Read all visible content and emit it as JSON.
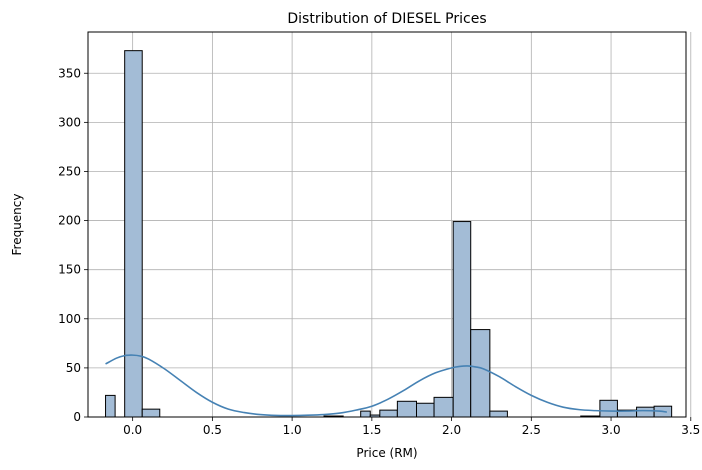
{
  "chart_data": {
    "type": "bar",
    "subtype": "histogram-with-kde",
    "title": "Distribution of DIESEL Prices",
    "xlabel": "Price (RM)",
    "ylabel": "Frequency",
    "xlim": [
      -0.28,
      3.47
    ],
    "ylim": [
      0,
      392
    ],
    "xticks": [
      "0.0",
      "0.5",
      "1.0",
      "1.5",
      "2.0",
      "2.5",
      "3.0",
      "3.5"
    ],
    "xtick_values": [
      0,
      0.5,
      1.0,
      1.5,
      2.0,
      2.5,
      3.0,
      3.5
    ],
    "yticks": [
      "0",
      "50",
      "100",
      "150",
      "200",
      "250",
      "300",
      "350"
    ],
    "ytick_values": [
      0,
      50,
      100,
      150,
      200,
      250,
      300,
      350
    ],
    "grid": true,
    "bar_color": "#a3bcd6",
    "bar_edge_color": "#000000",
    "kde_color": "#4682b4",
    "bins": [
      {
        "start": -0.17,
        "end": -0.11,
        "count": 22
      },
      {
        "start": -0.11,
        "end": -0.05,
        "count": 0
      },
      {
        "start": -0.05,
        "end": 0.06,
        "count": 373
      },
      {
        "start": 0.06,
        "end": 0.17,
        "count": 8
      },
      {
        "start": 0.17,
        "end": 0.28,
        "count": 0
      },
      {
        "start": 0.28,
        "end": 0.4,
        "count": 0
      },
      {
        "start": 0.4,
        "end": 0.51,
        "count": 0
      },
      {
        "start": 0.51,
        "end": 0.63,
        "count": 0
      },
      {
        "start": 0.63,
        "end": 0.74,
        "count": 0
      },
      {
        "start": 0.74,
        "end": 0.86,
        "count": 0
      },
      {
        "start": 0.86,
        "end": 0.97,
        "count": 0
      },
      {
        "start": 0.97,
        "end": 1.09,
        "count": 0
      },
      {
        "start": 1.09,
        "end": 1.2,
        "count": 0
      },
      {
        "start": 1.2,
        "end": 1.32,
        "count": 1
      },
      {
        "start": 1.32,
        "end": 1.43,
        "count": 0
      },
      {
        "start": 1.43,
        "end": 1.49,
        "count": 6
      },
      {
        "start": 1.49,
        "end": 1.55,
        "count": 2
      },
      {
        "start": 1.55,
        "end": 1.66,
        "count": 7
      },
      {
        "start": 1.66,
        "end": 1.78,
        "count": 16
      },
      {
        "start": 1.78,
        "end": 1.89,
        "count": 14
      },
      {
        "start": 1.89,
        "end": 2.01,
        "count": 20
      },
      {
        "start": 2.01,
        "end": 2.12,
        "count": 199
      },
      {
        "start": 2.12,
        "end": 2.24,
        "count": 89
      },
      {
        "start": 2.24,
        "end": 2.35,
        "count": 6
      },
      {
        "start": 2.35,
        "end": 2.47,
        "count": 0
      },
      {
        "start": 2.47,
        "end": 2.58,
        "count": 0
      },
      {
        "start": 2.58,
        "end": 2.7,
        "count": 0
      },
      {
        "start": 2.7,
        "end": 2.81,
        "count": 0
      },
      {
        "start": 2.81,
        "end": 2.93,
        "count": 1
      },
      {
        "start": 2.93,
        "end": 3.04,
        "count": 17
      },
      {
        "start": 3.04,
        "end": 3.16,
        "count": 7
      },
      {
        "start": 3.16,
        "end": 3.27,
        "count": 10
      },
      {
        "start": 3.27,
        "end": 3.38,
        "count": 11
      }
    ],
    "kde": {
      "x": [
        -0.17,
        -0.1,
        -0.05,
        0.0,
        0.05,
        0.1,
        0.2,
        0.3,
        0.4,
        0.5,
        0.6,
        0.7,
        0.8,
        0.9,
        1.0,
        1.1,
        1.2,
        1.3,
        1.4,
        1.5,
        1.6,
        1.7,
        1.8,
        1.9,
        2.0,
        2.05,
        2.1,
        2.15,
        2.2,
        2.3,
        2.4,
        2.5,
        2.6,
        2.7,
        2.8,
        2.9,
        3.0,
        3.1,
        3.2,
        3.3,
        3.35
      ],
      "y": [
        54,
        60,
        62.5,
        63,
        62,
        59,
        49,
        37,
        25,
        15,
        8,
        4.5,
        2.5,
        1.6,
        1.5,
        1.8,
        2.5,
        4,
        7,
        11,
        18,
        27,
        37,
        45,
        50,
        51.5,
        52,
        51,
        49,
        41,
        31,
        22,
        15,
        10,
        7.5,
        6.5,
        6,
        6,
        6.5,
        6,
        5
      ]
    }
  }
}
